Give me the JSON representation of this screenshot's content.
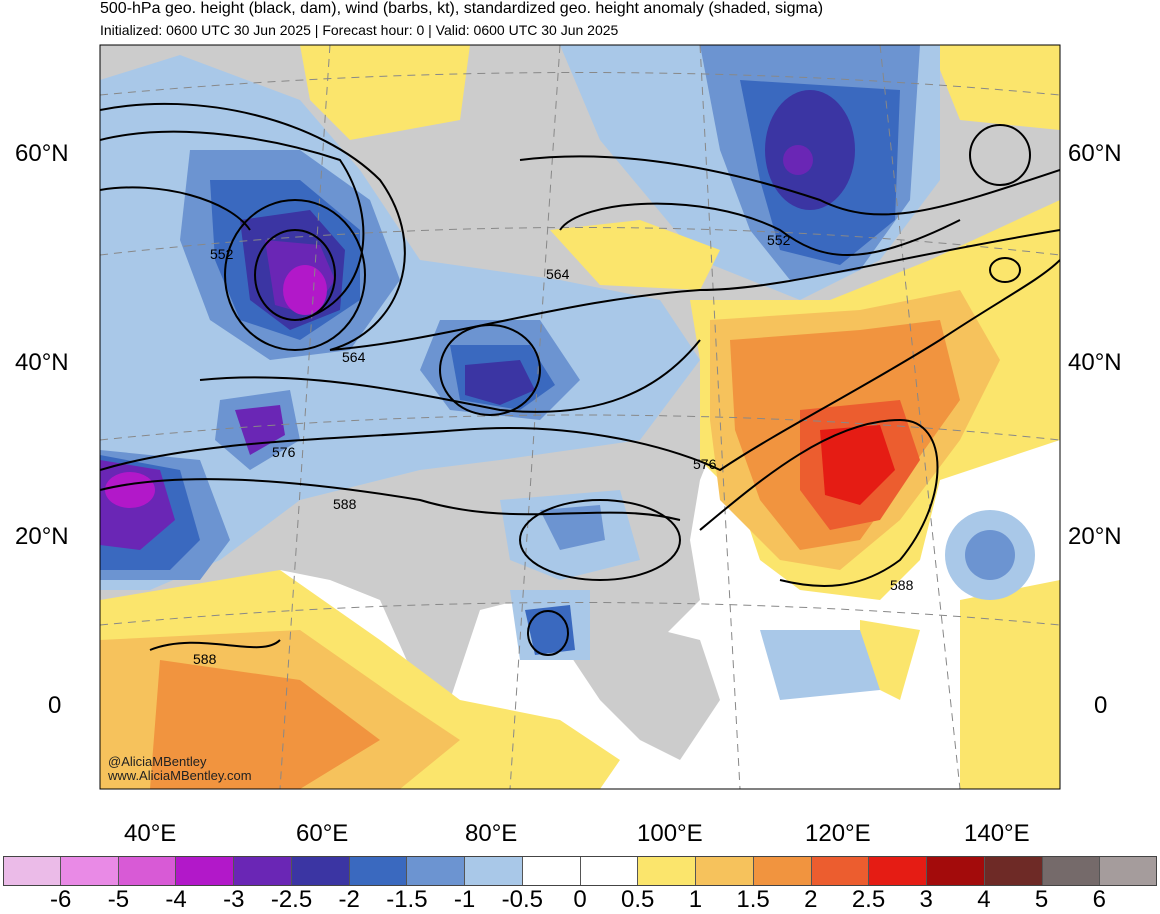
{
  "title": "500-hPa geo. height (black, dam), wind (barbs, kt), standardized geo. height anomaly (shaded, sigma)",
  "subtitle": "Initialized: 0600 UTC 30 Jun 2025 | Forecast hour: 0 | Valid: 0600 UTC 30 Jun 2025",
  "lat_labels": [
    "60°N",
    "40°N",
    "20°N",
    "0"
  ],
  "lon_labels": [
    "40°E",
    "60°E",
    "80°E",
    "100°E",
    "120°E",
    "140°E"
  ],
  "contour_labels": [
    "552",
    "552",
    "564",
    "564",
    "576",
    "576",
    "588",
    "588",
    "588"
  ],
  "credit": {
    "handle": "@AliciaMBentley",
    "site": "www.AliciaMBentley.com"
  },
  "colorbar": {
    "colors": [
      "#ebbbe8",
      "#e98ae6",
      "#d85ad6",
      "#b218c9",
      "#6a26b5",
      "#3b35a3",
      "#3a69bf",
      "#6c94d1",
      "#a9c8e8",
      "#ffffff",
      "#ffffff",
      "#fbe56c",
      "#f6c25c",
      "#f1943f",
      "#ec5d2f",
      "#e51c14",
      "#a30b0b",
      "#6e2a26",
      "#756a6a",
      "#a59c9c"
    ],
    "ticks": [
      "-6",
      "-5",
      "-4",
      "-3",
      "-2.5",
      "-2",
      "-1.5",
      "-1",
      "-0.5",
      "0",
      "0.5",
      "1",
      "1.5",
      "2",
      "2.5",
      "3",
      "4",
      "5",
      "6"
    ]
  }
}
